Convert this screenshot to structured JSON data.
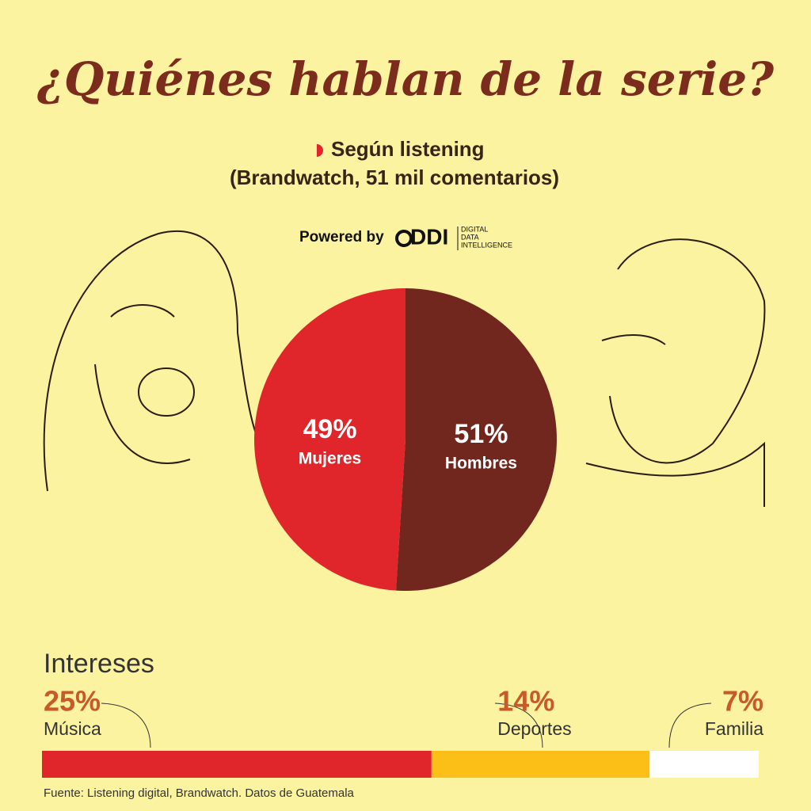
{
  "header": {
    "title": "¿Quiénes hablan de la serie?",
    "subtitle": [
      "Según listening",
      "(Brandwatch, 51 mil comentarios)"
    ],
    "powered_by": "Powered by",
    "logo": "DDI",
    "logo_caption": [
      "DIGITAL",
      "DATA",
      "INTELLIGENCE"
    ]
  },
  "chart_data": [
    {
      "type": "pie",
      "categories": [
        "Mujeres",
        "Hombres"
      ],
      "values": [
        49,
        51
      ],
      "value_labels": [
        "49%",
        "51%"
      ],
      "colors": [
        "#e0262b",
        "#72271e"
      ]
    },
    {
      "type": "stacked-bar",
      "title": "Intereses",
      "categories": [
        "Música",
        "Deportes",
        "Familia"
      ],
      "values": [
        25,
        14,
        7
      ],
      "value_labels": [
        "25%",
        "14%",
        "7%"
      ],
      "colors": [
        "#e0262b",
        "#fbbf18",
        "#ffffff"
      ]
    }
  ],
  "footer": {
    "source": "Fuente: Listening digital, Brandwatch. Datos de Guatemala"
  }
}
